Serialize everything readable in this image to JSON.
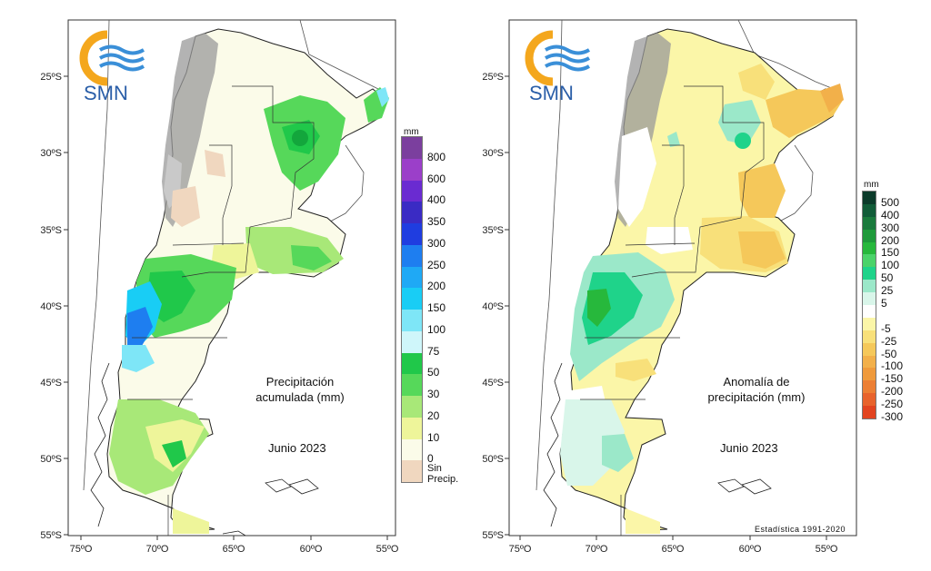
{
  "logo": {
    "text": "SMN"
  },
  "axes": {
    "lat_labels": [
      "25ºS",
      "30ºS",
      "35ºS",
      "40ºS",
      "45ºS",
      "50ºS",
      "55ºS"
    ],
    "lon_labels": [
      "75ºO",
      "70ºO",
      "65ºO",
      "60ºO",
      "55ºO"
    ]
  },
  "left_map": {
    "title_line1": "Precipitación",
    "title_line2": "acumulada (mm)",
    "date": "Junio 2023",
    "legend_unit": "mm",
    "legend": [
      {
        "label": "800",
        "color": "#7b3f9e"
      },
      {
        "label": "600",
        "color": "#9b3fc9"
      },
      {
        "label": "400",
        "color": "#6a2bd1"
      },
      {
        "label": "350",
        "color": "#3a2bc4"
      },
      {
        "label": "300",
        "color": "#1f3de0"
      },
      {
        "label": "250",
        "color": "#1e7ef0"
      },
      {
        "label": "200",
        "color": "#1fa9f5"
      },
      {
        "label": "150",
        "color": "#19cdf5"
      },
      {
        "label": "100",
        "color": "#7ee6f7"
      },
      {
        "label": "75",
        "color": "#cff6fa"
      },
      {
        "label": "50",
        "color": "#20c84a"
      },
      {
        "label": "30",
        "color": "#56d85a"
      },
      {
        "label": "20",
        "color": "#a8e878"
      },
      {
        "label": "10",
        "color": "#eef59a"
      },
      {
        "label": "0",
        "color": "#fbfbe9"
      },
      {
        "label": "Sin Precip.",
        "color": "#f0d7bf"
      }
    ]
  },
  "right_map": {
    "title_line1": "Anomalía de",
    "title_line2": "precipitación (mm)",
    "date": "Junio 2023",
    "legend_unit": "mm",
    "stat_note": "Estadística 1991-2020",
    "legend": [
      {
        "label": "500",
        "color": "#0b3b2a"
      },
      {
        "label": "400",
        "color": "#115c38"
      },
      {
        "label": "300",
        "color": "#1a7a3c"
      },
      {
        "label": "200",
        "color": "#1f9a3a"
      },
      {
        "label": "150",
        "color": "#27b83c"
      },
      {
        "label": "100",
        "color": "#4bd36a"
      },
      {
        "label": "50",
        "color": "#1fd38a"
      },
      {
        "label": "25",
        "color": "#9be8c9"
      },
      {
        "label": "5",
        "color": "#d9f6ea"
      },
      {
        "label": "",
        "color": "#ffffff"
      },
      {
        "label": "-5",
        "color": "#fbf6a8"
      },
      {
        "label": "-25",
        "color": "#f8e07a"
      },
      {
        "label": "-50",
        "color": "#f5c85a"
      },
      {
        "label": "-100",
        "color": "#f2b04a"
      },
      {
        "label": "-150",
        "color": "#ef9a3c"
      },
      {
        "label": "-200",
        "color": "#ec7f34"
      },
      {
        "label": "-250",
        "color": "#e8632c"
      },
      {
        "label": "-300",
        "color": "#e24420"
      }
    ]
  }
}
